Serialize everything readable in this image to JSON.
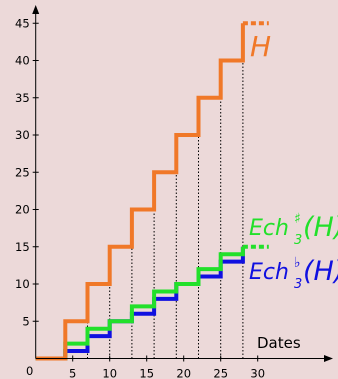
{
  "chart_data": {
    "type": "line",
    "subtype": "step",
    "background": "#ecd9d9",
    "xlabel": "Dates",
    "ylabel": "",
    "xlim": [
      0,
      31
    ],
    "ylim": [
      0,
      46
    ],
    "xticks": [
      0,
      5,
      10,
      15,
      20,
      25,
      30
    ],
    "yticks": [
      5,
      10,
      15,
      20,
      25,
      30,
      35,
      40,
      45
    ],
    "grid": false,
    "dates": [
      4,
      7,
      10,
      13,
      16,
      19,
      22,
      25,
      28
    ],
    "series": [
      {
        "name": "H",
        "label_text": "H",
        "color": "#f07828",
        "start": [
          0,
          0
        ],
        "steps": [
          [
            4,
            5
          ],
          [
            7,
            10
          ],
          [
            10,
            15
          ],
          [
            13,
            20
          ],
          [
            16,
            25
          ],
          [
            19,
            30
          ],
          [
            22,
            35
          ],
          [
            25,
            40
          ],
          [
            28,
            45
          ]
        ],
        "end_x": 28,
        "dashed_extension_to_x": 31.5
      },
      {
        "name": "Ech♯₃(H)",
        "label_text": "Ech",
        "label_sup": "♯",
        "label_sub": "3",
        "label_arg": "(H)",
        "color": "#22e02a",
        "start": [
          0,
          0
        ],
        "steps": [
          [
            4,
            2
          ],
          [
            7,
            4
          ],
          [
            10,
            5
          ],
          [
            13,
            7
          ],
          [
            16,
            9
          ],
          [
            19,
            10
          ],
          [
            22,
            12
          ],
          [
            25,
            14
          ],
          [
            28,
            15
          ]
        ],
        "end_x": 28,
        "dashed_extension_to_x": 31.5
      },
      {
        "name": "Ech♭₃(H)",
        "label_text": "Ech",
        "label_sup": "♭",
        "label_sub": "3",
        "label_arg": "(H)",
        "color": "#1010e0",
        "start": [
          0,
          0
        ],
        "steps": [
          [
            4,
            1
          ],
          [
            7,
            3
          ],
          [
            10,
            5
          ],
          [
            13,
            6
          ],
          [
            16,
            8
          ],
          [
            19,
            10
          ],
          [
            22,
            11
          ],
          [
            25,
            13
          ],
          [
            28,
            15
          ]
        ],
        "end_x": 28,
        "dashed_extension_to_x": 28
      }
    ],
    "origin_label": "0"
  }
}
